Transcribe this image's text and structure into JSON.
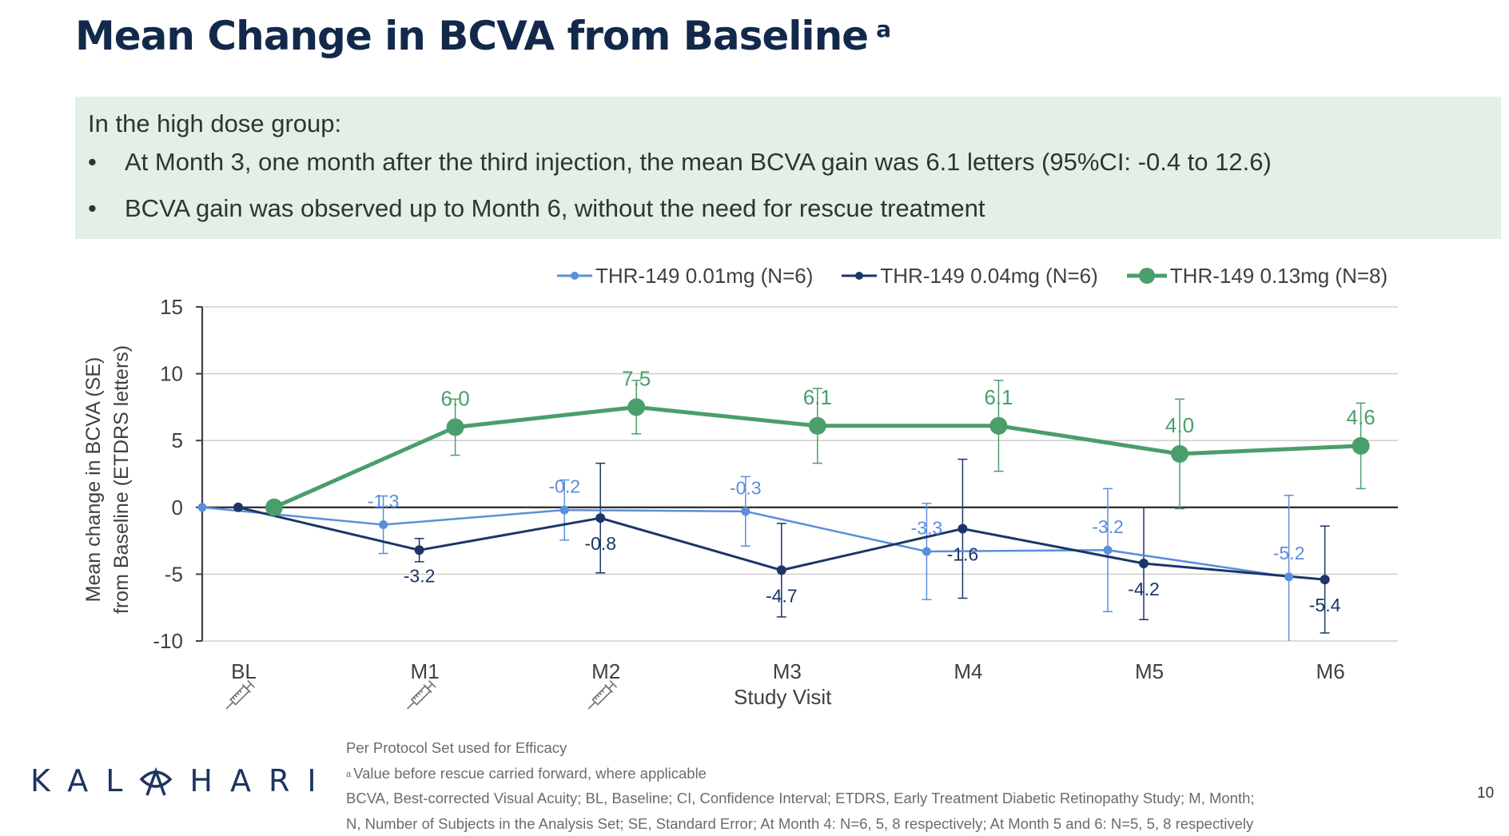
{
  "slide": {
    "title": "Mean Change in BCVA from Baseline",
    "title_superscript": "a",
    "callout": {
      "lead": "In the high dose group:",
      "bullets": [
        "At Month 3, one month after the third injection, the mean BCVA gain was 6.1 letters (95%CI: -0.4 to 12.6)",
        "BCVA gain was observed up to Month 6, without the need for rescue treatment"
      ],
      "bullet_char": "•",
      "background": "#E2F0E6"
    },
    "footer": {
      "notes": [
        "Per Protocol Set used for Efficacy",
        "Value before rescue carried forward, where applicable",
        "BCVA, Best-corrected Visual Acuity; BL, Baseline; CI, Confidence Interval; ETDRS, Early Treatment Diabetic Retinopathy Study; M, Month;",
        "N, Number of Subjects in the Analysis Set; SE, Standard Error; At Month 4: N=6, 5, 8 respectively; At Month 5 and 6: N=5, 5, 8 respectively"
      ],
      "note_superscript": "a",
      "logo_left": "KAL",
      "logo_right": "HARI",
      "logo_icon": "eye-a-icon",
      "page_number": "10"
    },
    "injection_icon": "syringe-icon",
    "injection_visits": [
      "BL",
      "M1",
      "M2"
    ]
  },
  "chart_data": {
    "type": "line",
    "title": "",
    "xlabel": "Study Visit",
    "ylabel": "Mean change in BCVA (SE) from Baseline (ETDRS letters)",
    "ylabel_lines": [
      "Mean change in BCVA (SE)",
      "from Baseline (ETDRS letters)"
    ],
    "categories": [
      "BL",
      "M1",
      "M2",
      "M3",
      "M4",
      "M5",
      "M6"
    ],
    "ylim": [
      -10,
      15
    ],
    "yticks": [
      15,
      10,
      5,
      0,
      -5,
      -10
    ],
    "grid": true,
    "legend_position": "top",
    "series": [
      {
        "name": "THR-149 0.01mg (N=6)",
        "color": "#5B8EDB",
        "values": [
          0,
          -1.3,
          -0.2,
          -0.3,
          -3.3,
          -3.2,
          -5.2
        ],
        "se": [
          0,
          2.15,
          2.25,
          2.6,
          3.6,
          4.6,
          6.1
        ],
        "labels": [
          "",
          "-1.3",
          "-0.2",
          "-0.3",
          "-3.3",
          "-3.2",
          "-5.2"
        ],
        "label_side": "above"
      },
      {
        "name": "THR-149 0.04mg (N=6)",
        "color": "#1B3667",
        "values": [
          0,
          -3.2,
          -0.8,
          -4.7,
          -1.6,
          -4.2,
          -5.4
        ],
        "se": [
          0,
          0.87,
          4.1,
          3.5,
          5.2,
          4.2,
          4.0
        ],
        "labels": [
          "",
          "-3.2",
          "-0.8",
          "-4.7",
          "-1.6",
          "-4.2",
          "-5.4"
        ],
        "label_side": "below"
      },
      {
        "name": "THR-149 0.13mg (N=8)",
        "color": "#4A9E6B",
        "values": [
          0,
          6.0,
          7.5,
          6.1,
          6.1,
          4.0,
          4.6
        ],
        "se": [
          0,
          2.1,
          2.0,
          2.8,
          3.4,
          4.1,
          3.2
        ],
        "labels": [
          "",
          "6.0",
          "7.5",
          "6.1",
          "6.1",
          "4.0",
          "4.6"
        ],
        "label_side": "above"
      }
    ]
  }
}
